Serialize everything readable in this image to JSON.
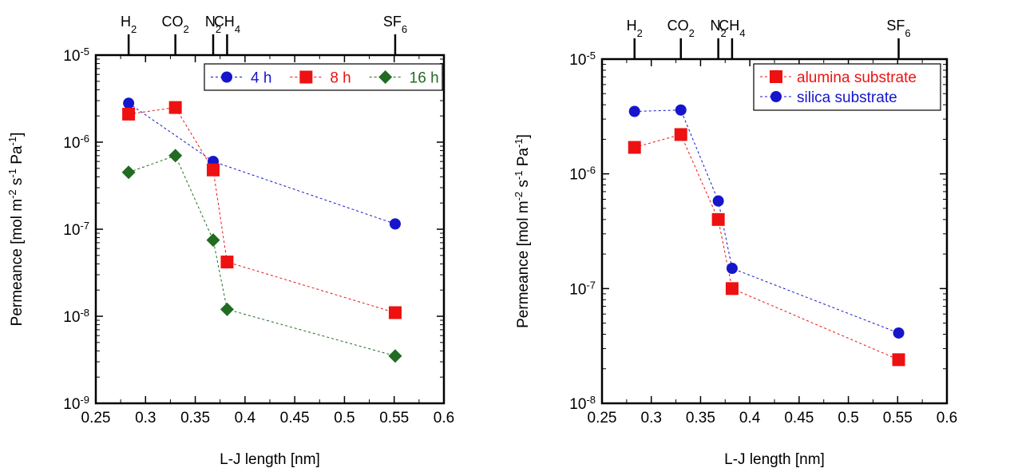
{
  "chart_data": [
    {
      "type": "scatter",
      "xlabel": "L-J length [nm]",
      "ylabel": "Permeance [mol m-2 s-1 Pa-1]",
      "xlim": [
        0.25,
        0.6
      ],
      "ylim": [
        1e-09,
        1e-05
      ],
      "y_scale": "log",
      "x_ticks": [
        "0.25",
        "0.3",
        "0.35",
        "0.4",
        "0.45",
        "0.5",
        "0.55",
        "0.6"
      ],
      "y_ticks": [
        {
          "base": "10",
          "exp": "-9"
        },
        {
          "base": "10",
          "exp": "-8"
        },
        {
          "base": "10",
          "exp": "-7"
        },
        {
          "base": "10",
          "exp": "-6"
        },
        {
          "base": "10",
          "exp": "-5"
        }
      ],
      "gases": [
        {
          "main": "H",
          "sub": "2",
          "x": 0.283
        },
        {
          "main": "CO",
          "sub": "2",
          "x": 0.33
        },
        {
          "main": "N",
          "sub": "2",
          "x": 0.368
        },
        {
          "main": "CH",
          "sub": "4",
          "x": 0.382
        },
        {
          "main": "SF",
          "sub": "6",
          "x": 0.551
        }
      ],
      "legend_position": "top-right",
      "series": [
        {
          "name": "4 h",
          "color": "#1515cc",
          "marker": "circle",
          "x": [
            0.283,
            0.368,
            0.551
          ],
          "y": [
            2.8e-06,
            6e-07,
            1.15e-07
          ]
        },
        {
          "name": "8 h",
          "color": "#ee1111",
          "marker": "square",
          "x": [
            0.283,
            0.33,
            0.368,
            0.382,
            0.551
          ],
          "y": [
            2.1e-06,
            2.5e-06,
            4.8e-07,
            4.2e-08,
            1.1e-08
          ]
        },
        {
          "name": "16 h",
          "color": "#226b22",
          "marker": "diamond",
          "x": [
            0.283,
            0.33,
            0.368,
            0.382,
            0.551
          ],
          "y": [
            4.5e-07,
            7e-07,
            7.5e-08,
            1.2e-08,
            3.5e-09
          ]
        }
      ]
    },
    {
      "type": "scatter",
      "xlabel": "L-J length [nm]",
      "ylabel": "Permeance [mol m-2 s-1 Pa-1]",
      "xlim": [
        0.25,
        0.6
      ],
      "ylim": [
        1e-08,
        1e-05
      ],
      "y_scale": "log",
      "x_ticks": [
        "0.25",
        "0.3",
        "0.35",
        "0.4",
        "0.45",
        "0.5",
        "0.55",
        "0.6"
      ],
      "y_ticks": [
        {
          "base": "10",
          "exp": "-8"
        },
        {
          "base": "10",
          "exp": "-7"
        },
        {
          "base": "10",
          "exp": "-6"
        },
        {
          "base": "10",
          "exp": "-5"
        }
      ],
      "gases": [
        {
          "main": "H",
          "sub": "2",
          "x": 0.283
        },
        {
          "main": "CO",
          "sub": "2",
          "x": 0.33
        },
        {
          "main": "N",
          "sub": "2",
          "x": 0.368
        },
        {
          "main": "CH",
          "sub": "4",
          "x": 0.382
        },
        {
          "main": "SF",
          "sub": "6",
          "x": 0.551
        }
      ],
      "legend_position": "top-right",
      "series": [
        {
          "name": "alumina substrate",
          "color": "#ee1111",
          "marker": "square",
          "x": [
            0.283,
            0.33,
            0.368,
            0.382,
            0.551
          ],
          "y": [
            1.7e-06,
            2.2e-06,
            4e-07,
            1e-07,
            2.4e-08
          ]
        },
        {
          "name": "silica substrate",
          "color": "#1515cc",
          "marker": "circle",
          "x": [
            0.283,
            0.33,
            0.368,
            0.382,
            0.551
          ],
          "y": [
            3.5e-06,
            3.6e-06,
            5.8e-07,
            1.5e-07,
            4.1e-08
          ]
        }
      ]
    }
  ]
}
